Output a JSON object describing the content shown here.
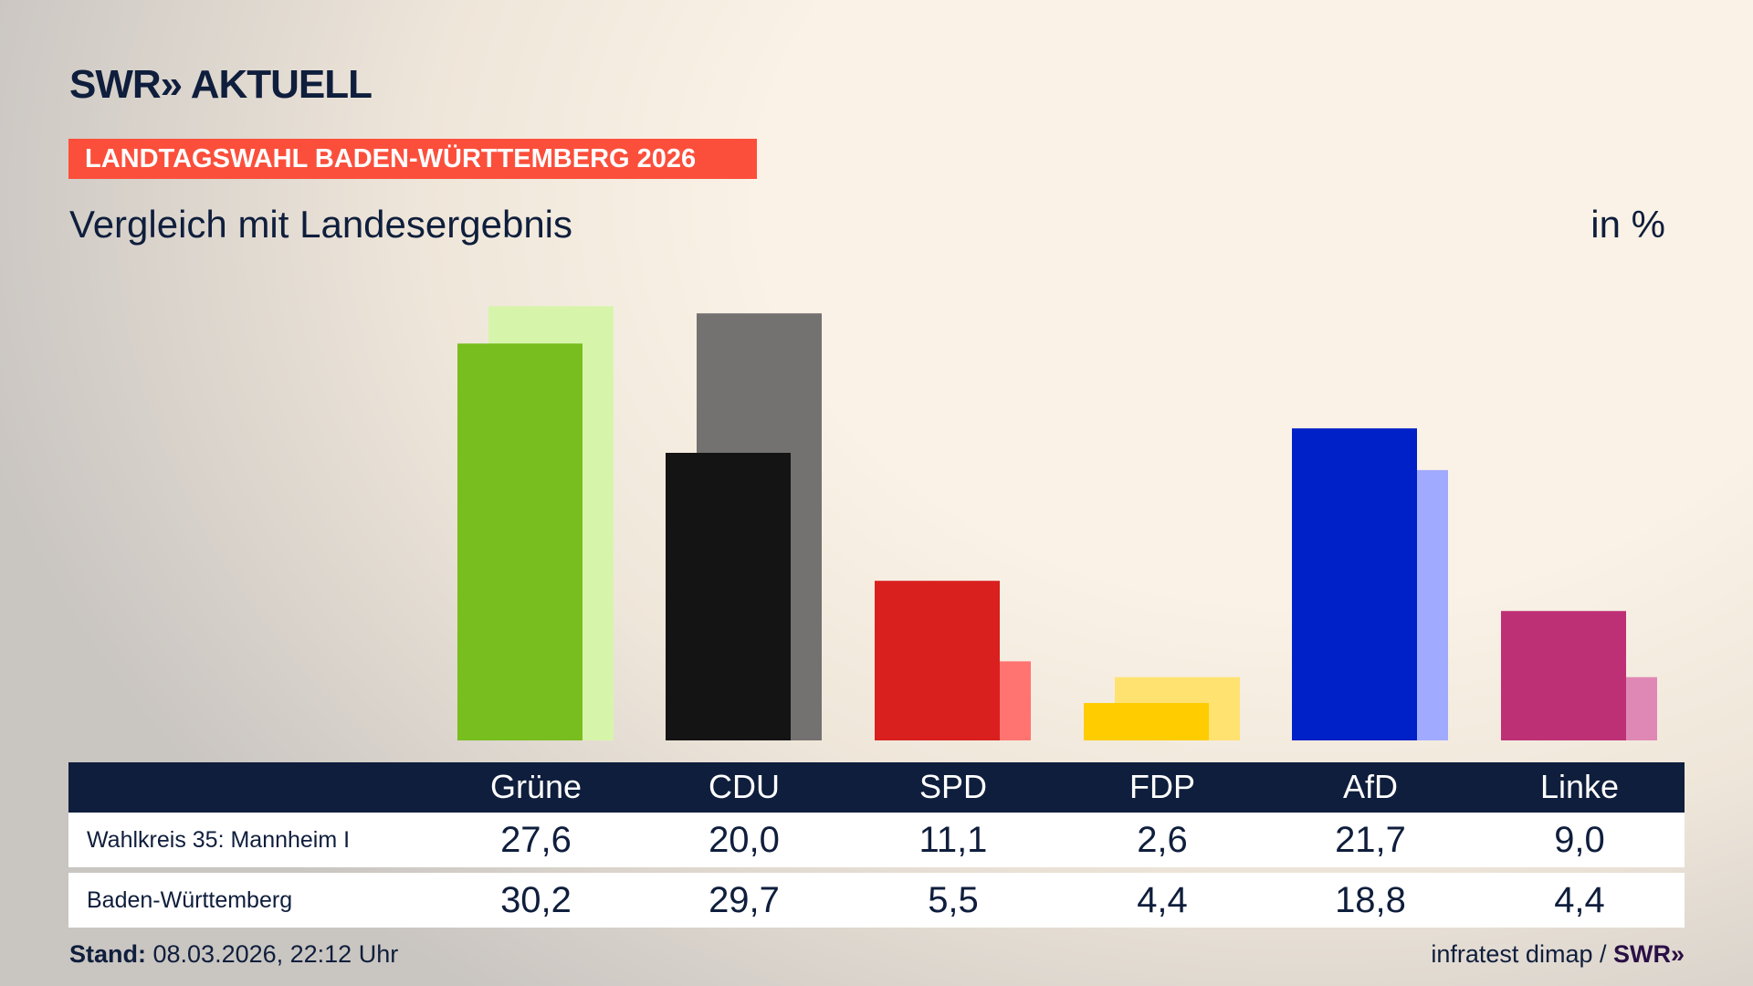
{
  "header": {
    "logo": "SWR» AKTUELL",
    "banner": "LANDTAGSWAHL BADEN-WÜRTTEMBERG 2026",
    "subtitle": "Vergleich mit Landesergebnis",
    "unit": "in %"
  },
  "chart_data": {
    "type": "bar",
    "title": "Vergleich mit Landesergebnis",
    "ylabel": "in %",
    "categories": [
      "Grüne",
      "CDU",
      "SPD",
      "FDP",
      "AfD",
      "Linke"
    ],
    "series": [
      {
        "name": "Wahlkreis 35: Mannheim I",
        "values": [
          27.6,
          20.0,
          11.1,
          2.6,
          21.7,
          9.0
        ],
        "colors": [
          "#78be1e",
          "#141414",
          "#d9201e",
          "#ffcc00",
          "#0020c8",
          "#be3075"
        ]
      },
      {
        "name": "Baden-Württemberg",
        "values": [
          30.2,
          29.7,
          5.5,
          4.4,
          18.8,
          4.4
        ],
        "colors": [
          "#d7f5aa",
          "#747270",
          "#ff7470",
          "#ffe270",
          "#a0aaff",
          "#e088b5"
        ]
      }
    ],
    "ylim": [
      0,
      30.2
    ],
    "grid": false
  },
  "table": {
    "headers": [
      "Grüne",
      "CDU",
      "SPD",
      "FDP",
      "AfD",
      "Linke"
    ],
    "rows": [
      {
        "label": "Wahlkreis 35: Mannheim I",
        "values": [
          "27,6",
          "20,0",
          "11,1",
          "2,6",
          "21,7",
          "9,0"
        ]
      },
      {
        "label": "Baden-Württemberg",
        "values": [
          "30,2",
          "29,7",
          "5,5",
          "4,4",
          "18,8",
          "4,4"
        ]
      }
    ]
  },
  "footer": {
    "stand_label": "Stand:",
    "stand_value": " 08.03.2026, 22:12 Uhr",
    "source": "infratest dimap / ",
    "source_logo": "SWR»"
  },
  "colors": {
    "navy": "#0f1e3c",
    "banner": "#fb4f3c"
  }
}
